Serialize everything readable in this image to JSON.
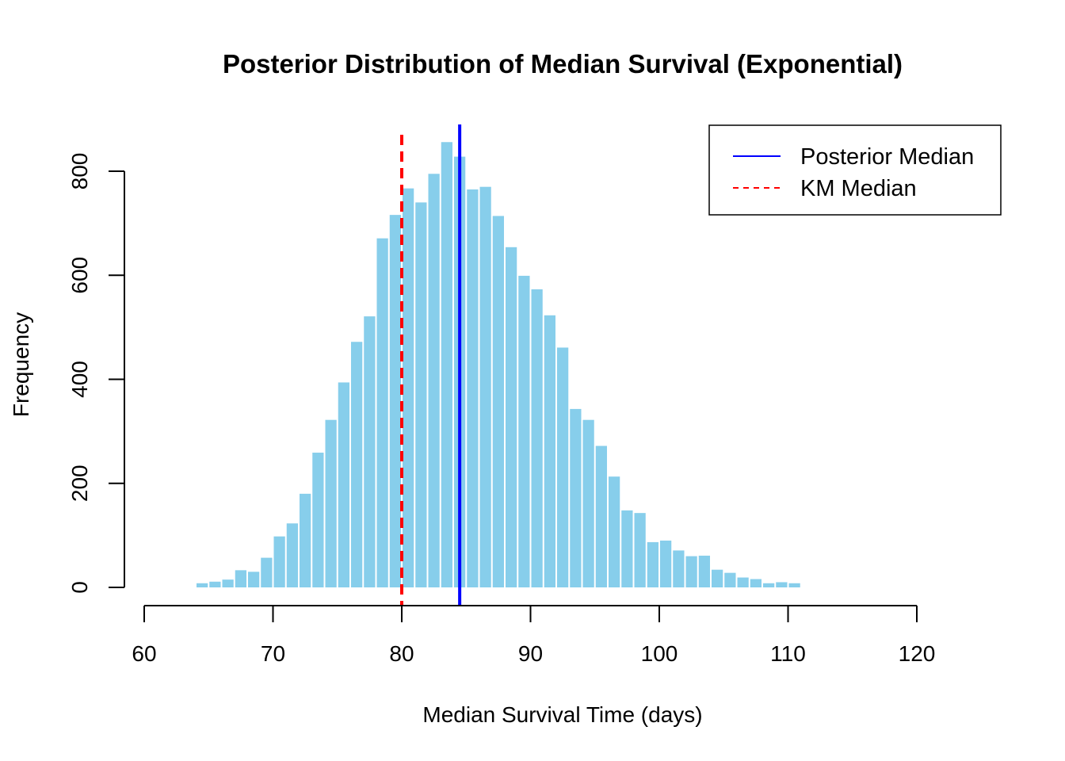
{
  "chart_data": {
    "type": "bar",
    "title": "Posterior Distribution of Median Survival (Exponential)",
    "xlabel": "Median Survival Time (days)",
    "ylabel": "Frequency",
    "xlim": [
      60,
      120
    ],
    "ylim": [
      0,
      880
    ],
    "x_ticks": [
      "60",
      "70",
      "80",
      "90",
      "100",
      "110",
      "120"
    ],
    "y_ticks": [
      "0",
      "200",
      "400",
      "600",
      "800"
    ],
    "x_tick_values": [
      60,
      70,
      80,
      90,
      100,
      110,
      120
    ],
    "y_tick_values": [
      0,
      200,
      400,
      600,
      800
    ],
    "bin_width": 1,
    "bins_start": [
      64,
      65,
      66,
      67,
      68,
      69,
      70,
      71,
      72,
      73,
      74,
      75,
      76,
      77,
      78,
      79,
      80,
      81,
      82,
      83,
      84,
      85,
      86,
      87,
      88,
      89,
      90,
      91,
      92,
      93,
      94,
      95,
      96,
      97,
      98,
      99,
      100,
      101,
      102,
      103,
      104,
      105,
      106,
      107,
      108,
      109,
      110
    ],
    "values": [
      8,
      11,
      15,
      33,
      30,
      57,
      98,
      123,
      180,
      259,
      322,
      394,
      472,
      521,
      671,
      716,
      767,
      740,
      795,
      856,
      828,
      765,
      770,
      714,
      654,
      599,
      573,
      523,
      461,
      343,
      322,
      272,
      213,
      148,
      143,
      87,
      90,
      71,
      60,
      61,
      34,
      28,
      19,
      16,
      8,
      10,
      8
    ],
    "bar_color": "#87CEEB",
    "grid": false,
    "reference_lines": [
      {
        "name": "Posterior Median",
        "x": 84.5,
        "color": "#0000FF",
        "style": "solid"
      },
      {
        "name": "KM Median",
        "x": 80,
        "color": "#FF0000",
        "style": "dashed"
      }
    ],
    "legend": {
      "position": "top-right",
      "entries": [
        "Posterior Median",
        "KM Median"
      ]
    }
  }
}
